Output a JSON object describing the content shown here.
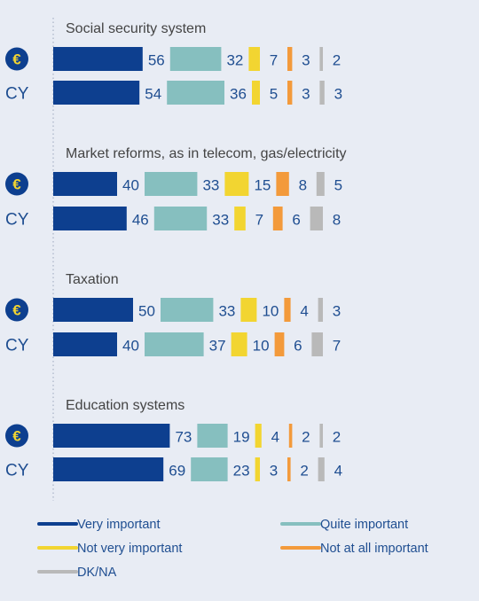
{
  "chart_data": {
    "type": "bar",
    "orientation": "horizontal",
    "stacked": true,
    "groups": [
      {
        "title": "Social security system",
        "rows": [
          {
            "label": "€",
            "values": [
              56,
              32,
              7,
              3,
              2
            ]
          },
          {
            "label": "CY",
            "values": [
              54,
              36,
              5,
              3,
              3
            ]
          }
        ]
      },
      {
        "title": "Market reforms, as in telecom, gas/electricity",
        "rows": [
          {
            "label": "€",
            "values": [
              40,
              33,
              15,
              8,
              5
            ]
          },
          {
            "label": "CY",
            "values": [
              46,
              33,
              7,
              6,
              8
            ]
          }
        ]
      },
      {
        "title": "Taxation",
        "rows": [
          {
            "label": "€",
            "values": [
              50,
              33,
              10,
              4,
              3
            ]
          },
          {
            "label": "CY",
            "values": [
              40,
              37,
              10,
              6,
              7
            ]
          }
        ]
      },
      {
        "title": "Education systems",
        "rows": [
          {
            "label": "€",
            "values": [
              73,
              19,
              4,
              2,
              2
            ]
          },
          {
            "label": "CY",
            "values": [
              69,
              23,
              3,
              2,
              4
            ]
          }
        ]
      }
    ],
    "series": [
      {
        "name": "Very important",
        "color": "#0d3f8f"
      },
      {
        "name": "Quite important",
        "color": "#86bfbf"
      },
      {
        "name": "Not very important",
        "color": "#f2d531"
      },
      {
        "name": "Not at all important",
        "color": "#f39a3b"
      },
      {
        "name": "DK/NA",
        "color": "#b9b9b9"
      }
    ],
    "legend_position": "bottom",
    "grid": false
  },
  "colors": {
    "background": "#e8ecf4",
    "text": "#1f4e91",
    "title_text": "#444444",
    "euro_badge": "#0d3f8f",
    "euro_symbol": "#f2d531"
  }
}
